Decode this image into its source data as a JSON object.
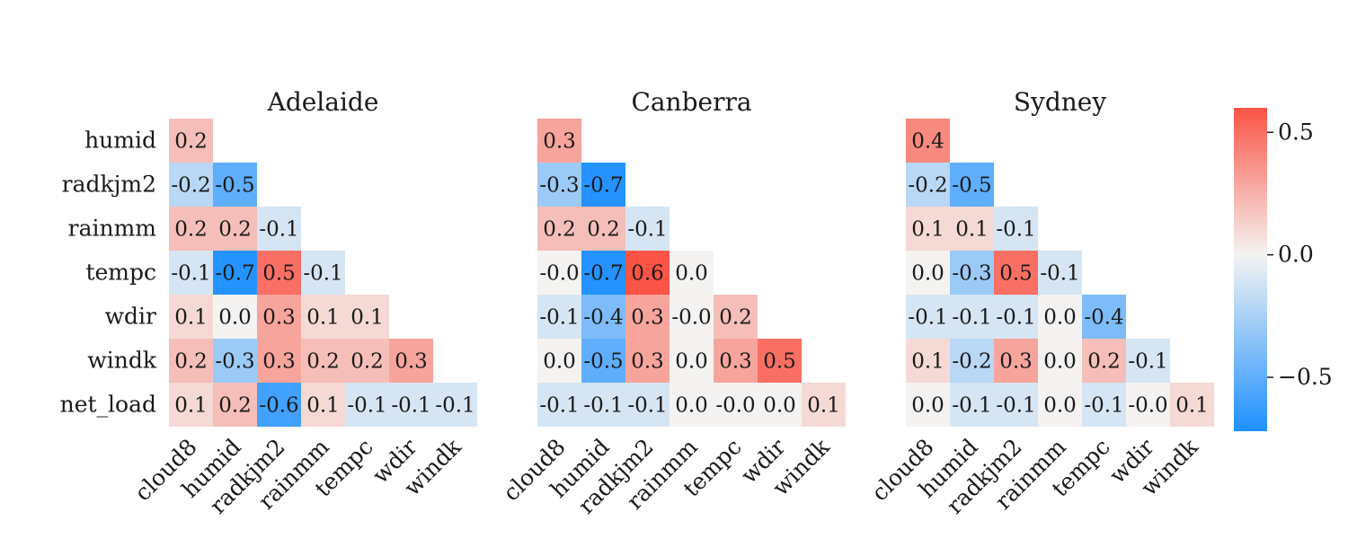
{
  "chart_data": {
    "type": "heatmap",
    "rows": [
      "humid",
      "radkjm2",
      "rainmm",
      "tempc",
      "wdir",
      "windk",
      "net_load"
    ],
    "columns": [
      "cloud8",
      "humid",
      "radkjm2",
      "rainmm",
      "tempc",
      "wdir",
      "windk"
    ],
    "mask": "lower-triangle",
    "panels": [
      {
        "title": "Adelaide",
        "values": [
          [
            "0.2"
          ],
          [
            "-0.2",
            "-0.5"
          ],
          [
            "0.2",
            "0.2",
            "-0.1"
          ],
          [
            "-0.1",
            "-0.7",
            "0.5",
            "-0.1"
          ],
          [
            "0.1",
            "0.0",
            "0.3",
            "0.1",
            "0.1"
          ],
          [
            "0.2",
            "-0.3",
            "0.3",
            "0.2",
            "0.2",
            "0.3"
          ],
          [
            "0.1",
            "0.2",
            "-0.6",
            "0.1",
            "-0.1",
            "-0.1",
            "-0.1"
          ]
        ]
      },
      {
        "title": "Canberra",
        "values": [
          [
            "0.3"
          ],
          [
            "-0.3",
            "-0.7"
          ],
          [
            "0.2",
            "0.2",
            "-0.1"
          ],
          [
            "-0.0",
            "-0.7",
            "0.6",
            "0.0"
          ],
          [
            "-0.1",
            "-0.4",
            "0.3",
            "-0.0",
            "0.2"
          ],
          [
            "0.0",
            "-0.5",
            "0.3",
            "0.0",
            "0.3",
            "0.5"
          ],
          [
            "-0.1",
            "-0.1",
            "-0.1",
            "0.0",
            "-0.0",
            "0.0",
            "0.1"
          ]
        ]
      },
      {
        "title": "Sydney",
        "values": [
          [
            "0.4"
          ],
          [
            "-0.2",
            "-0.5"
          ],
          [
            "0.1",
            "0.1",
            "-0.1"
          ],
          [
            "0.0",
            "-0.3",
            "0.5",
            "-0.1"
          ],
          [
            "-0.1",
            "-0.1",
            "-0.1",
            "0.0",
            "-0.4"
          ],
          [
            "0.1",
            "-0.2",
            "0.3",
            "0.0",
            "0.2",
            "-0.1"
          ],
          [
            "0.0",
            "-0.1",
            "-0.1",
            "0.0",
            "-0.1",
            "-0.0",
            "0.1"
          ]
        ]
      }
    ],
    "colorbar": {
      "vmin": -0.72,
      "vmax": 0.6,
      "ticks": [
        0.5,
        0.0,
        -0.5
      ],
      "tick_labels": [
        "0.5",
        "0.0",
        "−0.5"
      ],
      "colors": {
        "negative": "#1e90ff",
        "center": "#f4f3f1",
        "positive": "#fa5446"
      }
    }
  }
}
